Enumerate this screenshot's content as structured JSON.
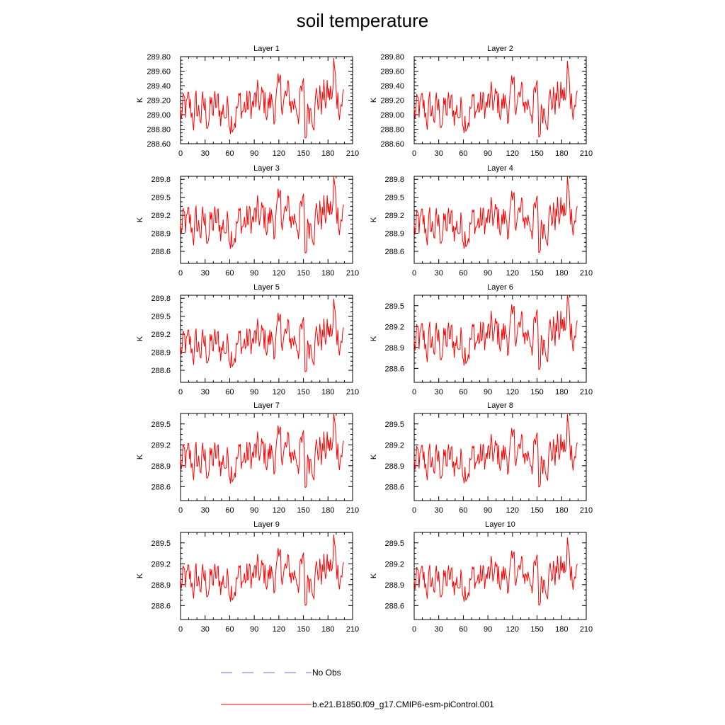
{
  "title": "soil temperature",
  "colors": {
    "series": "#ff0000",
    "obs": "#6b6bd6",
    "axis": "#000000"
  },
  "legend": {
    "obs_label": "No Obs",
    "model_label": "b.e21.B1850.f09_g17.CMIP6-esm-piControl.001"
  },
  "chart_data": [
    {
      "type": "line",
      "title": "Layer 1",
      "ylabel": "K",
      "xlim": [
        0,
        210
      ],
      "xticks": [
        0,
        30,
        60,
        90,
        120,
        150,
        180,
        210
      ],
      "ylim": [
        288.6,
        289.8
      ],
      "yticks": [
        "289.80",
        "289.60",
        "289.40",
        "289.20",
        "289.00",
        "288.80",
        "288.60"
      ],
      "ytickvals": [
        289.8,
        289.6,
        289.4,
        289.2,
        289.0,
        288.8,
        288.6
      ],
      "mean": 289.0,
      "amp": 1.0,
      "series": [
        {
          "name": "b.e21.B1850.f09_g17.CMIP6-esm-piControl.001"
        }
      ]
    },
    {
      "type": "line",
      "title": "Layer 2",
      "ylabel": "K",
      "xlim": [
        0,
        210
      ],
      "xticks": [
        0,
        30,
        60,
        90,
        120,
        150,
        180,
        210
      ],
      "ylim": [
        288.6,
        289.8
      ],
      "yticks": [
        "289.80",
        "289.60",
        "289.40",
        "289.20",
        "289.00",
        "288.80",
        "288.60"
      ],
      "ytickvals": [
        289.8,
        289.6,
        289.4,
        289.2,
        289.0,
        288.8,
        288.6
      ],
      "mean": 289.0,
      "amp": 0.95,
      "series": [
        {
          "name": "b.e21.B1850.f09_g17.CMIP6-esm-piControl.001"
        }
      ]
    },
    {
      "type": "line",
      "title": "Layer 3",
      "ylabel": "K",
      "xlim": [
        0,
        210
      ],
      "xticks": [
        0,
        30,
        60,
        90,
        120,
        150,
        180,
        210
      ],
      "ylim": [
        288.4,
        289.85
      ],
      "yticks": [
        "289.8",
        "289.5",
        "289.2",
        "288.9",
        "288.6"
      ],
      "ytickvals": [
        289.8,
        289.5,
        289.2,
        288.9,
        288.6
      ],
      "mean": 288.96,
      "amp": 1.2,
      "series": [
        {
          "name": "b.e21.B1850.f09_g17.CMIP6-esm-piControl.001"
        }
      ]
    },
    {
      "type": "line",
      "title": "Layer 4",
      "ylabel": "K",
      "xlim": [
        0,
        210
      ],
      "xticks": [
        0,
        30,
        60,
        90,
        120,
        150,
        180,
        210
      ],
      "ylim": [
        288.4,
        289.85
      ],
      "yticks": [
        "289.8",
        "289.5",
        "289.2",
        "288.9",
        "288.6"
      ],
      "ytickvals": [
        289.8,
        289.5,
        289.2,
        288.9,
        288.6
      ],
      "mean": 288.95,
      "amp": 1.15,
      "series": [
        {
          "name": "b.e21.B1850.f09_g17.CMIP6-esm-piControl.001"
        }
      ]
    },
    {
      "type": "line",
      "title": "Layer 5",
      "ylabel": "K",
      "xlim": [
        0,
        210
      ],
      "xticks": [
        0,
        30,
        60,
        90,
        120,
        150,
        180,
        210
      ],
      "ylim": [
        288.4,
        289.85
      ],
      "yticks": [
        "289.8",
        "289.5",
        "289.2",
        "288.9",
        "288.6"
      ],
      "ytickvals": [
        289.8,
        289.5,
        289.2,
        288.9,
        288.6
      ],
      "mean": 288.93,
      "amp": 1.1,
      "series": [
        {
          "name": "b.e21.B1850.f09_g17.CMIP6-esm-piControl.001"
        }
      ]
    },
    {
      "type": "line",
      "title": "Layer 6",
      "ylabel": "K",
      "xlim": [
        0,
        210
      ],
      "xticks": [
        0,
        30,
        60,
        90,
        120,
        150,
        180,
        210
      ],
      "ylim": [
        288.4,
        289.65
      ],
      "yticks": [
        "289.5",
        "289.2",
        "288.9",
        "288.6"
      ],
      "ytickvals": [
        289.5,
        289.2,
        288.9,
        288.6
      ],
      "mean": 288.92,
      "amp": 1.05,
      "series": [
        {
          "name": "b.e21.B1850.f09_g17.CMIP6-esm-piControl.001"
        }
      ]
    },
    {
      "type": "line",
      "title": "Layer 7",
      "ylabel": "K",
      "xlim": [
        0,
        210
      ],
      "xticks": [
        0,
        30,
        60,
        90,
        120,
        150,
        180,
        210
      ],
      "ylim": [
        288.4,
        289.65
      ],
      "yticks": [
        "289.5",
        "289.2",
        "288.9",
        "288.6"
      ],
      "ytickvals": [
        289.5,
        289.2,
        288.9,
        288.6
      ],
      "mean": 288.91,
      "amp": 1.0,
      "series": [
        {
          "name": "b.e21.B1850.f09_g17.CMIP6-esm-piControl.001"
        }
      ]
    },
    {
      "type": "line",
      "title": "Layer 8",
      "ylabel": "K",
      "xlim": [
        0,
        210
      ],
      "xticks": [
        0,
        30,
        60,
        90,
        120,
        150,
        180,
        210
      ],
      "ylim": [
        288.4,
        289.65
      ],
      "yticks": [
        "289.5",
        "289.2",
        "288.9",
        "288.6"
      ],
      "ytickvals": [
        289.5,
        289.2,
        288.9,
        288.6
      ],
      "mean": 288.9,
      "amp": 0.95,
      "series": [
        {
          "name": "b.e21.B1850.f09_g17.CMIP6-esm-piControl.001"
        }
      ]
    },
    {
      "type": "line",
      "title": "Layer 9",
      "ylabel": "K",
      "xlim": [
        0,
        210
      ],
      "xticks": [
        0,
        30,
        60,
        90,
        120,
        150,
        180,
        210
      ],
      "ylim": [
        288.4,
        289.65
      ],
      "yticks": [
        "289.5",
        "289.2",
        "288.9",
        "288.6"
      ],
      "ytickvals": [
        289.5,
        289.2,
        288.9,
        288.6
      ],
      "mean": 288.9,
      "amp": 0.92,
      "series": [
        {
          "name": "b.e21.B1850.f09_g17.CMIP6-esm-piControl.001"
        }
      ]
    },
    {
      "type": "line",
      "title": "Layer 10",
      "ylabel": "K",
      "xlim": [
        0,
        210
      ],
      "xticks": [
        0,
        30,
        60,
        90,
        120,
        150,
        180,
        210
      ],
      "ylim": [
        288.4,
        289.65
      ],
      "yticks": [
        "289.5",
        "289.2",
        "288.9",
        "288.6"
      ],
      "ytickvals": [
        289.5,
        289.2,
        288.9,
        288.6
      ],
      "mean": 288.89,
      "amp": 0.88,
      "series": [
        {
          "name": "b.e21.B1850.f09_g17.CMIP6-esm-piControl.001"
        }
      ]
    }
  ]
}
